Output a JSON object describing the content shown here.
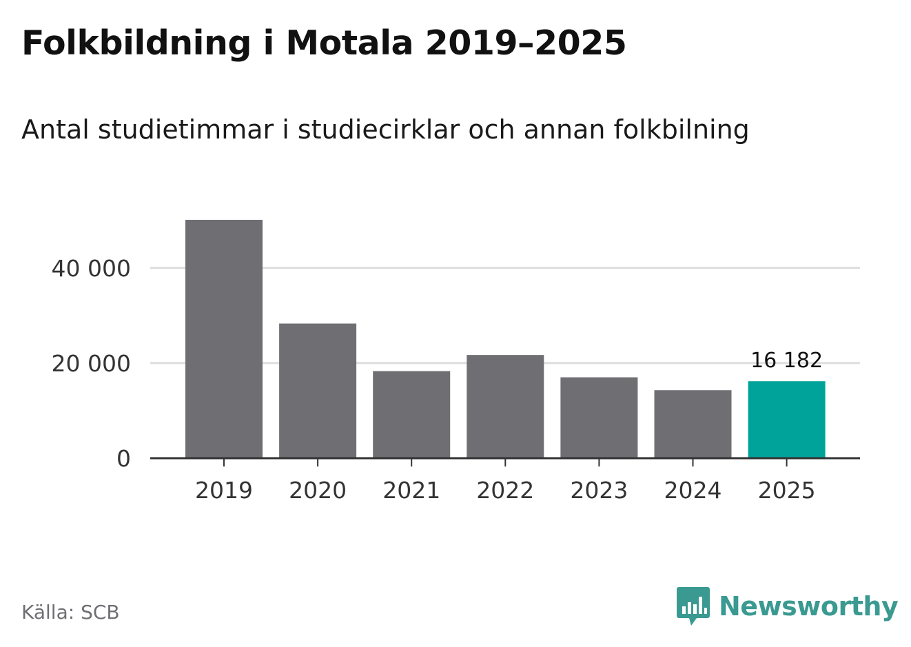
{
  "title": "Folkbildning i Motala 2019–2025",
  "subtitle": "Antal studietimmar i studiecirklar och annan folkbilning",
  "source": "Källa: SCB",
  "brand": {
    "name": "Newsworthy",
    "icon": "newsworthy-logo-icon",
    "color": "#3a9a91"
  },
  "colors": {
    "bar": "#6f6e73",
    "highlight": "#00a39a",
    "grid": "#dddddd",
    "axis": "#333333",
    "text": "#333333"
  },
  "chart_data": {
    "type": "bar",
    "title": "Folkbildning i Motala 2019–2025",
    "subtitle": "Antal studietimmar i studiecirklar och annan folkbilning",
    "xlabel": "",
    "ylabel": "",
    "categories": [
      "2019",
      "2020",
      "2021",
      "2022",
      "2023",
      "2024",
      "2025"
    ],
    "values": [
      50100,
      28300,
      18300,
      21700,
      17000,
      14300,
      16182
    ],
    "highlight_index": 6,
    "value_labels": [
      {
        "index": 6,
        "text": "16 182"
      }
    ],
    "ylim": [
      0,
      50100
    ],
    "yticks": [
      0,
      20000,
      40000
    ],
    "ytick_labels": [
      "0",
      "20 000",
      "40 000"
    ],
    "grid": true,
    "legend": "none"
  }
}
